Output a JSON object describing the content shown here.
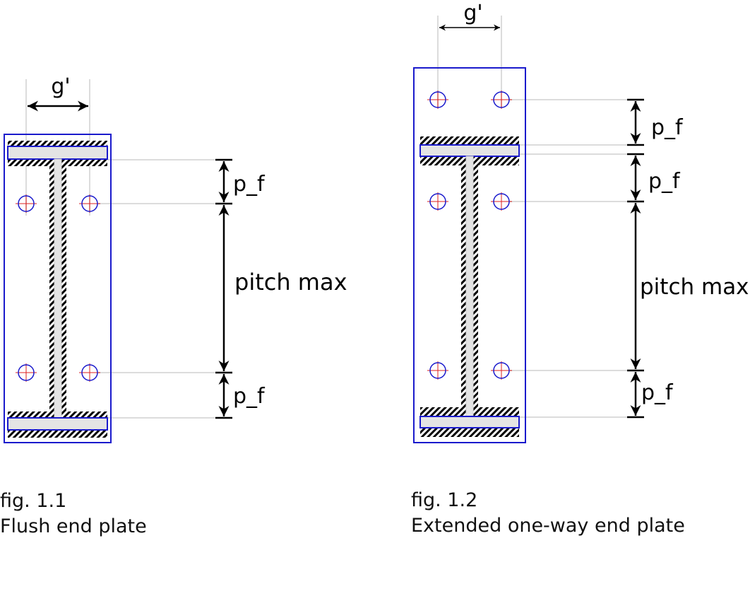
{
  "figures": [
    {
      "id": "fig11",
      "caption_number": "fig. 1.1",
      "caption_title": "Flush end plate",
      "labels": {
        "gauge": "g'",
        "pf_top": "p_f",
        "pitch": "pitch max",
        "pf_bottom": "p_f"
      }
    },
    {
      "id": "fig12",
      "caption_number": "fig. 1.2",
      "caption_title": "Extended one-way end plate",
      "labels": {
        "gauge": "g'",
        "pf_top": "p_f",
        "pf_mid": "p_f",
        "pitch": "pitch max",
        "pf_bottom": "p_f"
      }
    }
  ],
  "colors": {
    "plate_outline": "#1a1acc",
    "bolt_circle": "#1a1acc",
    "bolt_cross": "#dd2222",
    "flange_fill": "#e4e4e4",
    "guide_line": "#dcdcdc",
    "dimension_line": "#000000"
  }
}
